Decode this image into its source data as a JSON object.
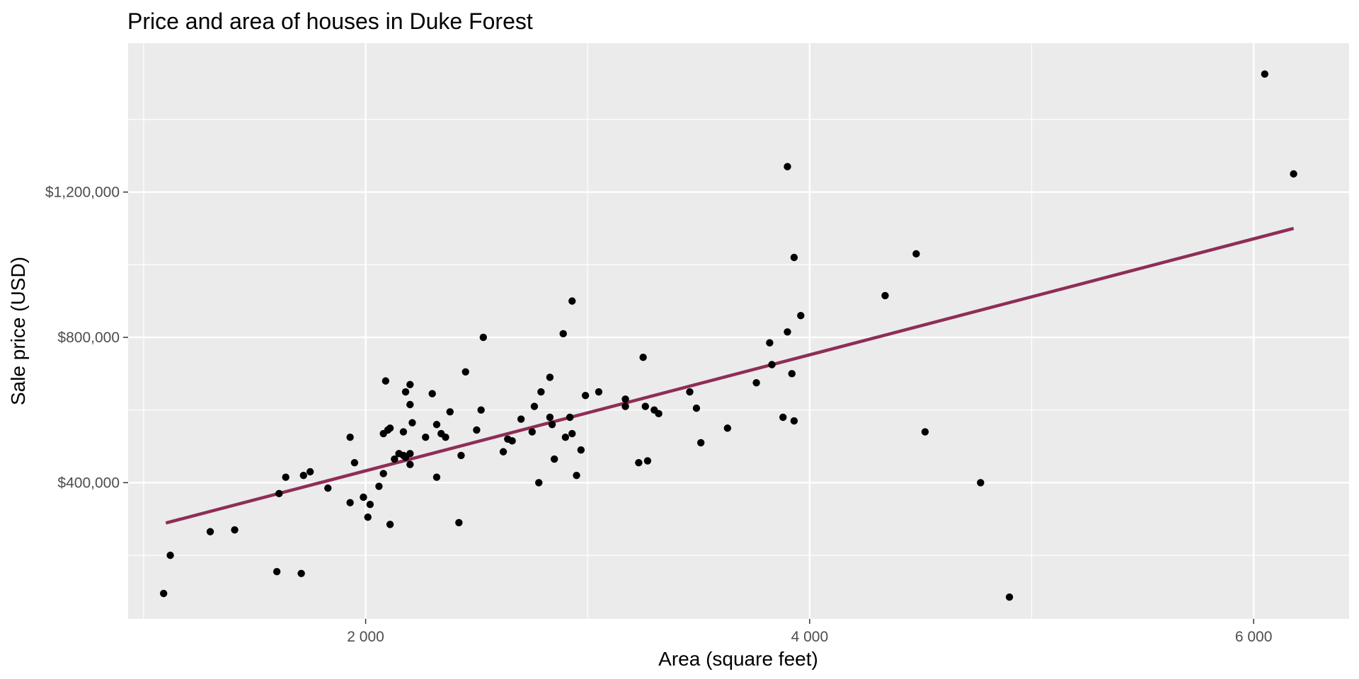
{
  "chart_data": {
    "type": "scatter",
    "title": "Price and area of houses in Duke Forest",
    "xlabel": "Area (square feet)",
    "ylabel": "Sale price (USD)",
    "xlim": [
      930,
      6430
    ],
    "ylim": [
      25000,
      1610000
    ],
    "x_ticks": [
      2000,
      4000,
      6000
    ],
    "x_tick_labels": [
      "2 000",
      "4 000",
      "6 000"
    ],
    "x_minor_ticks": [
      1000,
      3000,
      5000
    ],
    "y_ticks": [
      400000,
      800000,
      1200000
    ],
    "y_tick_labels": [
      "$400,000",
      "$800,000",
      "$1,200,000"
    ],
    "y_minor_ticks": [
      200000,
      600000,
      1000000,
      1400000
    ],
    "grid": true,
    "colors": {
      "panel_background": "#ebebeb",
      "grid": "#ffffff",
      "points": "#000000",
      "fit_line": "#8f2d56"
    },
    "series": [
      {
        "type": "scatter",
        "points": [
          [
            1090,
            95000
          ],
          [
            1120,
            200000
          ],
          [
            1300,
            265000
          ],
          [
            1410,
            270000
          ],
          [
            1600,
            155000
          ],
          [
            1610,
            370000
          ],
          [
            1640,
            415000
          ],
          [
            1710,
            150000
          ],
          [
            1720,
            420000
          ],
          [
            1750,
            430000
          ],
          [
            1830,
            385000
          ],
          [
            1930,
            345000
          ],
          [
            1930,
            525000
          ],
          [
            1950,
            455000
          ],
          [
            1990,
            360000
          ],
          [
            2010,
            305000
          ],
          [
            2020,
            340000
          ],
          [
            2060,
            390000
          ],
          [
            2080,
            425000
          ],
          [
            2080,
            535000
          ],
          [
            2090,
            680000
          ],
          [
            2100,
            545000
          ],
          [
            2110,
            285000
          ],
          [
            2110,
            550000
          ],
          [
            2130,
            465000
          ],
          [
            2150,
            480000
          ],
          [
            2170,
            475000
          ],
          [
            2170,
            540000
          ],
          [
            2180,
            470000
          ],
          [
            2180,
            650000
          ],
          [
            2200,
            450000
          ],
          [
            2200,
            480000
          ],
          [
            2200,
            615000
          ],
          [
            2200,
            670000
          ],
          [
            2210,
            565000
          ],
          [
            2270,
            525000
          ],
          [
            2300,
            645000
          ],
          [
            2320,
            415000
          ],
          [
            2320,
            560000
          ],
          [
            2340,
            535000
          ],
          [
            2360,
            525000
          ],
          [
            2380,
            595000
          ],
          [
            2420,
            290000
          ],
          [
            2430,
            475000
          ],
          [
            2450,
            705000
          ],
          [
            2500,
            545000
          ],
          [
            2520,
            600000
          ],
          [
            2530,
            800000
          ],
          [
            2620,
            485000
          ],
          [
            2640,
            520000
          ],
          [
            2660,
            515000
          ],
          [
            2700,
            575000
          ],
          [
            2750,
            540000
          ],
          [
            2760,
            610000
          ],
          [
            2780,
            400000
          ],
          [
            2790,
            650000
          ],
          [
            2830,
            580000
          ],
          [
            2830,
            690000
          ],
          [
            2840,
            560000
          ],
          [
            2850,
            465000
          ],
          [
            2890,
            810000
          ],
          [
            2900,
            525000
          ],
          [
            2920,
            580000
          ],
          [
            2930,
            900000
          ],
          [
            2930,
            535000
          ],
          [
            2950,
            420000
          ],
          [
            2970,
            490000
          ],
          [
            2990,
            640000
          ],
          [
            3050,
            650000
          ],
          [
            3170,
            630000
          ],
          [
            3170,
            610000
          ],
          [
            3230,
            455000
          ],
          [
            3250,
            745000
          ],
          [
            3260,
            610000
          ],
          [
            3270,
            460000
          ],
          [
            3300,
            600000
          ],
          [
            3320,
            590000
          ],
          [
            3460,
            650000
          ],
          [
            3490,
            605000
          ],
          [
            3510,
            510000
          ],
          [
            3630,
            550000
          ],
          [
            3760,
            675000
          ],
          [
            3820,
            785000
          ],
          [
            3830,
            725000
          ],
          [
            3880,
            580000
          ],
          [
            3900,
            815000
          ],
          [
            3900,
            1270000
          ],
          [
            3920,
            700000
          ],
          [
            3930,
            1020000
          ],
          [
            3930,
            570000
          ],
          [
            3960,
            860000
          ],
          [
            4340,
            915000
          ],
          [
            4480,
            1030000
          ],
          [
            4520,
            540000
          ],
          [
            4770,
            400000
          ],
          [
            4900,
            85000
          ],
          [
            6050,
            1525000
          ],
          [
            6180,
            1250000
          ]
        ]
      },
      {
        "type": "line",
        "name": "",
        "x": [
          1100,
          6180
        ],
        "y": [
          289000,
          1100000
        ]
      }
    ]
  }
}
